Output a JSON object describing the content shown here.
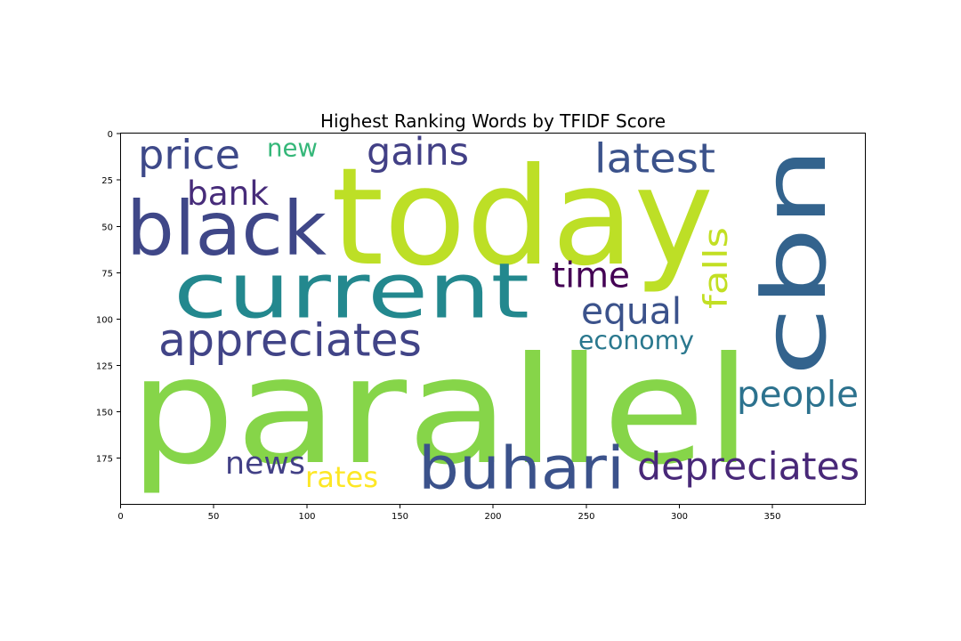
{
  "title": "Highest Ranking Words by TFIDF Score",
  "axes": {
    "x_ticks": [
      "0",
      "50",
      "100",
      "150",
      "200",
      "250",
      "300",
      "350"
    ],
    "y_ticks": [
      "0",
      "25",
      "50",
      "75",
      "100",
      "125",
      "150",
      "175"
    ]
  },
  "words": [
    {
      "text": "today",
      "color": "#bddf26"
    },
    {
      "text": "parallel",
      "color": "#86d549"
    },
    {
      "text": "cbn",
      "color": "#33638d"
    },
    {
      "text": "current",
      "color": "#23888e"
    },
    {
      "text": "black",
      "color": "#3f4788"
    },
    {
      "text": "buhari",
      "color": "#3b528b"
    },
    {
      "text": "appreciates",
      "color": "#414487"
    },
    {
      "text": "depreciates",
      "color": "#482878"
    },
    {
      "text": "price",
      "color": "#3e4989"
    },
    {
      "text": "gains",
      "color": "#424086"
    },
    {
      "text": "latest",
      "color": "#3b528b"
    },
    {
      "text": "people",
      "color": "#2c728e"
    },
    {
      "text": "equal",
      "color": "#3b528b"
    },
    {
      "text": "time",
      "color": "#440154"
    },
    {
      "text": "bank",
      "color": "#472c7a"
    },
    {
      "text": "news",
      "color": "#424086"
    },
    {
      "text": "economy",
      "color": "#2a788e"
    },
    {
      "text": "new",
      "color": "#35b779"
    },
    {
      "text": "falls",
      "color": "#c2df23"
    },
    {
      "text": "rates",
      "color": "#fde725"
    }
  ]
}
